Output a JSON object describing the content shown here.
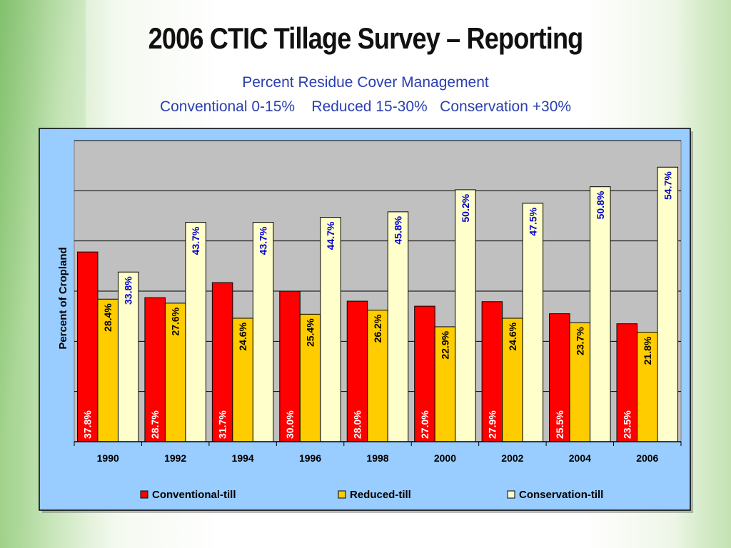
{
  "slide": {
    "title": "2006 CTIC Tillage Survey – Reporting",
    "subtitle1": "Percent Residue Cover Management",
    "subtitle2": "Conventional 0-15%    Reduced 15-30%   Conservation +30%"
  },
  "chart_data": {
    "type": "bar",
    "title": "",
    "xlabel": "",
    "ylabel": "Percent of Cropland",
    "ylim": [
      0,
      60
    ],
    "grid": true,
    "legend_position": "bottom",
    "categories": [
      "1990",
      "1992",
      "1994",
      "1996",
      "1998",
      "2000",
      "2002",
      "2004",
      "2006"
    ],
    "series": [
      {
        "name": "Conventional-till",
        "color": "#ff0000",
        "label_color": "#ffffff",
        "values": [
          37.8,
          28.7,
          31.7,
          30.0,
          28.0,
          27.0,
          27.9,
          25.5,
          23.5
        ],
        "labels": [
          "37.8%",
          "28.7%",
          "31.7%",
          "30.0%",
          "28.0%",
          "27.0%",
          "27.9%",
          "25.5%",
          "23.5%"
        ]
      },
      {
        "name": "Reduced-till",
        "color": "#ffcc00",
        "label_color": "#000000",
        "values": [
          28.4,
          27.6,
          24.6,
          25.4,
          26.2,
          22.9,
          24.6,
          23.7,
          21.8
        ],
        "labels": [
          "28.4%",
          "27.6%",
          "24.6%",
          "25.4%",
          "26.2%",
          "22.9%",
          "24.6%",
          "23.7%",
          "21.8%"
        ]
      },
      {
        "name": "Conservation-till",
        "color": "#ffffcc",
        "label_color": "#0000cc",
        "values": [
          33.8,
          43.7,
          43.7,
          44.7,
          45.8,
          50.2,
          47.5,
          50.8,
          54.7
        ],
        "labels": [
          "33.8%",
          "43.7%",
          "43.7%",
          "44.7%",
          "45.8%",
          "50.2%",
          "47.5%",
          "50.8%",
          "54.7%"
        ]
      }
    ],
    "colors": {
      "frame_bg": "#99ccff",
      "plot_bg": "#c0c0c0"
    }
  }
}
